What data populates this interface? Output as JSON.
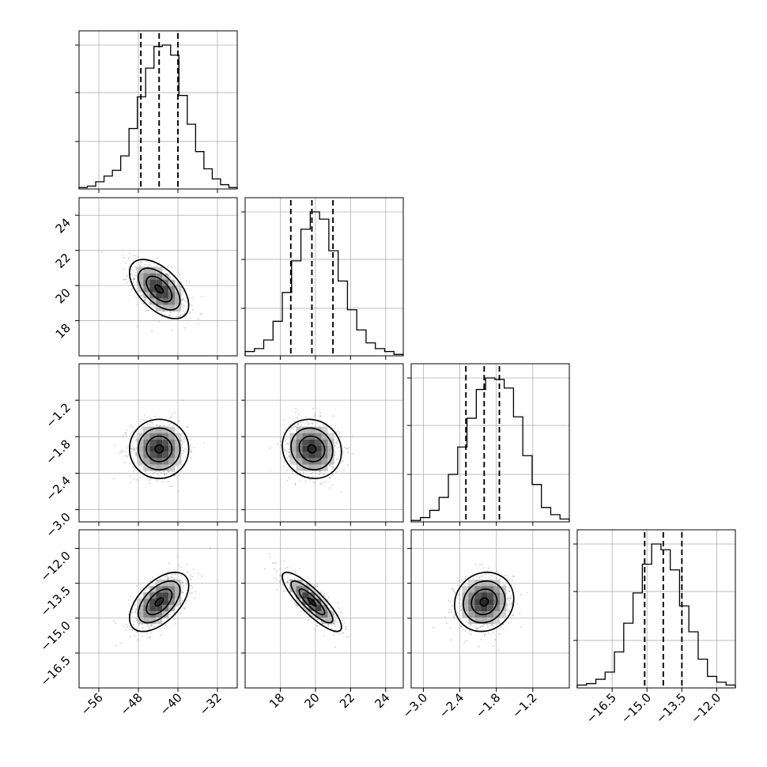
{
  "chart_data": {
    "type": "corner",
    "title": "",
    "parameters": [
      {
        "range": [
          -60,
          -28
        ],
        "ticks": [
          -56,
          -48,
          -40,
          -32
        ],
        "tick_labels": [
          "−56",
          "−48",
          "−40",
          "−32"
        ],
        "quantiles": [
          -47.5,
          -43.8,
          -40.0
        ],
        "median": -43.8
      },
      {
        "range": [
          16,
          25
        ],
        "ticks": [
          18,
          20,
          22,
          24
        ],
        "tick_labels": [
          "18",
          "20",
          "22",
          "24"
        ],
        "quantiles": [
          18.6,
          19.8,
          21.0
        ],
        "median": 19.8
      },
      {
        "range": [
          -3.2,
          -0.6
        ],
        "ticks": [
          -3.0,
          -2.4,
          -1.8,
          -1.2
        ],
        "tick_labels": [
          "−3.0",
          "−2.4",
          "−1.8",
          "−1.2"
        ],
        "quantiles": [
          -2.3,
          -2.0,
          -1.75
        ],
        "median": -2.0
      },
      {
        "range": [
          -18.0,
          -11.2
        ],
        "ticks": [
          -16.5,
          -15.0,
          -13.5,
          -12.0
        ],
        "tick_labels": [
          "−16.5",
          "−15.0",
          "−13.5",
          "−12.0"
        ],
        "quantiles": [
          -15.1,
          -14.3,
          -13.5
        ],
        "median": -14.3
      }
    ],
    "histograms": [
      [
        0.01,
        0.02,
        0.05,
        0.09,
        0.13,
        0.23,
        0.42,
        0.64,
        0.84,
        0.99,
        1.0,
        0.93,
        0.65,
        0.45,
        0.26,
        0.14,
        0.07,
        0.03,
        0.01
      ],
      [
        0.03,
        0.05,
        0.11,
        0.24,
        0.44,
        0.66,
        0.88,
        1.0,
        0.95,
        0.73,
        0.52,
        0.32,
        0.18,
        0.09,
        0.05,
        0.03,
        0.01
      ],
      [
        0.01,
        0.03,
        0.08,
        0.17,
        0.33,
        0.52,
        0.72,
        0.92,
        1.0,
        0.99,
        0.93,
        0.73,
        0.46,
        0.26,
        0.1,
        0.05,
        0.02
      ],
      [
        0.02,
        0.03,
        0.06,
        0.11,
        0.25,
        0.45,
        0.66,
        0.86,
        1.0,
        0.96,
        0.82,
        0.57,
        0.39,
        0.2,
        0.08,
        0.04,
        0.02
      ]
    ],
    "correlations": {
      "1-0": -0.55,
      "2-0": 0.0,
      "2-1": -0.1,
      "3-0": 0.55,
      "3-1": -0.85,
      "3-2": 0.1
    },
    "grid": true,
    "contour_levels": 4
  }
}
